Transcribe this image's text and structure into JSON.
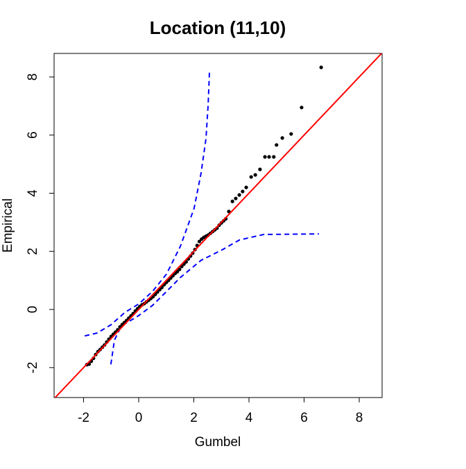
{
  "chart_data": {
    "type": "scatter",
    "title": "Location (11,10)",
    "x_label": "Gumbel",
    "y_label": "Empirical",
    "xlim": [
      -3.07,
      8.83
    ],
    "ylim": [
      -3.03,
      8.81
    ],
    "xticks": [
      -2,
      0,
      2,
      4,
      6,
      8
    ],
    "yticks": [
      -2,
      0,
      2,
      4,
      6,
      8
    ],
    "series": [
      {
        "color": "#000000",
        "x": [
          -1.88,
          -1.8,
          -1.72,
          -1.64,
          -1.56,
          -1.48,
          -1.4,
          -1.32,
          -1.24,
          -1.16,
          -1.08,
          -1.0,
          -0.92,
          -0.84,
          -0.76,
          -0.68,
          -0.6,
          -0.52,
          -0.44,
          -0.36,
          -0.28,
          -0.2,
          -0.12,
          -0.04,
          0.04,
          0.12,
          0.2,
          0.28,
          0.36,
          0.44,
          0.52,
          0.6,
          0.68,
          0.76,
          0.84,
          0.92,
          1.0,
          1.08,
          1.16,
          1.24,
          1.32,
          1.4,
          1.48,
          1.56,
          1.64,
          1.72,
          1.8,
          1.88,
          1.96,
          2.04,
          2.12,
          2.2,
          2.28,
          2.36,
          2.44,
          2.52,
          2.6,
          2.68,
          2.76,
          2.84,
          2.92,
          3.0,
          3.08,
          3.16,
          3.27,
          3.4,
          3.52,
          3.65,
          3.77,
          3.9,
          4.08,
          4.23,
          4.4,
          4.58,
          4.73,
          4.9,
          5.0,
          5.21,
          5.53,
          5.91,
          6.62
        ],
        "values": [
          -1.9,
          -1.88,
          -1.78,
          -1.68,
          -1.55,
          -1.45,
          -1.38,
          -1.3,
          -1.22,
          -1.12,
          -1.02,
          -0.93,
          -0.85,
          -0.78,
          -0.7,
          -0.6,
          -0.52,
          -0.45,
          -0.38,
          -0.3,
          -0.22,
          -0.14,
          -0.05,
          0.03,
          0.1,
          0.16,
          0.2,
          0.26,
          0.32,
          0.38,
          0.44,
          0.52,
          0.6,
          0.68,
          0.76,
          0.85,
          0.93,
          1.0,
          1.08,
          1.16,
          1.24,
          1.3,
          1.38,
          1.48,
          1.56,
          1.64,
          1.74,
          1.84,
          1.94,
          2.06,
          2.2,
          2.34,
          2.42,
          2.48,
          2.52,
          2.56,
          2.62,
          2.68,
          2.74,
          2.8,
          2.9,
          2.98,
          3.05,
          3.12,
          3.37,
          3.72,
          3.82,
          3.94,
          4.06,
          4.2,
          4.56,
          4.63,
          4.82,
          5.25,
          5.25,
          5.25,
          5.66,
          5.9,
          6.04,
          6.95,
          8.33
        ]
      }
    ],
    "reference_line": {
      "color": "#ff0000",
      "x": [
        -3.07,
        8.83
      ],
      "values": [
        -3.07,
        8.83
      ]
    },
    "bands": [
      {
        "color": "#0000ff",
        "x": [
          -1.96,
          -1.51,
          -1.01,
          -0.5,
          0,
          0.5,
          1.01,
          1.51,
          2.01,
          2.26,
          2.44,
          2.52,
          2.57
        ],
        "values": [
          -0.91,
          -0.81,
          -0.53,
          -0.1,
          0.19,
          0.62,
          1.22,
          2.17,
          3.48,
          4.68,
          5.87,
          7.06,
          8.26
        ]
      },
      {
        "color": "#0000ff",
        "x": [
          -1.01,
          -0.88,
          -0.63,
          0,
          0.5,
          1.01,
          1.51,
          2.26,
          3.02,
          3.65,
          4.53,
          6.54
        ],
        "values": [
          -1.89,
          -1.05,
          -0.57,
          -0.21,
          0.14,
          0.62,
          1.1,
          1.69,
          2.05,
          2.39,
          2.58,
          2.6
        ]
      }
    ]
  }
}
